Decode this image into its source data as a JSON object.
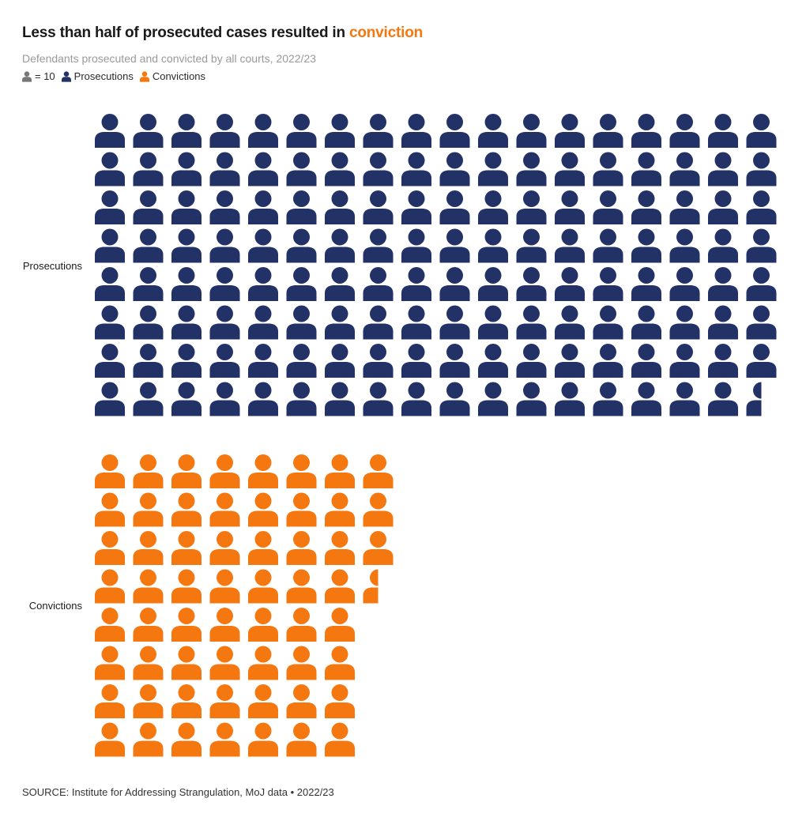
{
  "title": {
    "text": "Less than half of prosecuted cases resulted in ",
    "highlight": "conviction"
  },
  "subtitle": "Defendants prosecuted and convicted by all courts, 2022/23",
  "legend": {
    "unit_label": "= 10",
    "prosecutions_label": "Prosecutions",
    "convictions_label": "Convictions"
  },
  "colors": {
    "unit": "#777777",
    "prosecutions": "#233266",
    "convictions": "#f5770f",
    "highlight": "#f5770f"
  },
  "source": "SOURCE: Institute for Addressing Strangulation, MoJ data • 2022/23",
  "chart_data": {
    "type": "pictogram",
    "unit_value": 10,
    "icons_per_row": 18,
    "series": [
      {
        "name": "Prosecutions",
        "icons": 143.5,
        "approx_value": 1435,
        "color": "#233266"
      },
      {
        "name": "Convictions",
        "icons": 59.5,
        "approx_value": 595,
        "color": "#f5770f"
      }
    ]
  }
}
